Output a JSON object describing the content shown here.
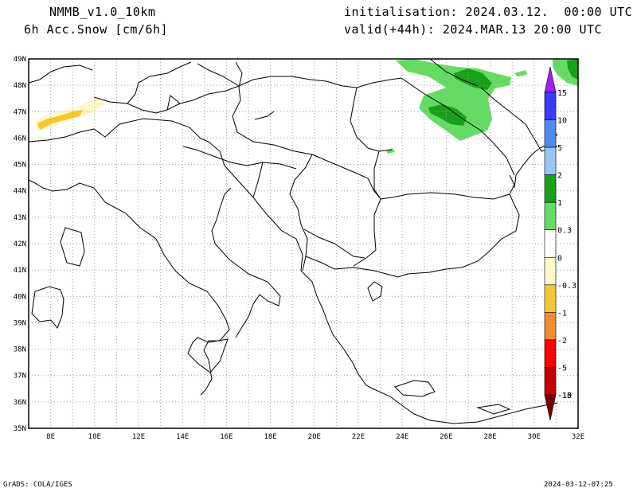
{
  "header": {
    "model": "NMMB_v1.0_10km",
    "variable": "6h Acc.Snow [cm/6h]",
    "init": "initialisation: 2024.03.12.  00:00 UTC",
    "valid": "valid(+44h): 2024.MAR.13 20:00 UTC"
  },
  "axes": {
    "lon_ticks": [
      "8E",
      "10E",
      "12E",
      "14E",
      "16E",
      "18E",
      "20E",
      "22E",
      "24E",
      "26E",
      "28E",
      "30E",
      "32E"
    ],
    "lat_ticks": [
      "49N",
      "48N",
      "47N",
      "46N",
      "45N",
      "44N",
      "43N",
      "42N",
      "41N",
      "40N",
      "39N",
      "38N",
      "37N",
      "36N",
      "35N"
    ],
    "lon_range": [
      7,
      32
    ],
    "lat_range": [
      35,
      49
    ]
  },
  "colorbar": {
    "levels": [
      "15",
      "10",
      "5",
      "2",
      "1",
      "0.3",
      "0",
      "-0.3",
      "-1",
      "-2",
      "-5",
      "-10",
      "-15"
    ],
    "colors": [
      "#a020f0",
      "#3c3cff",
      "#4b8cf0",
      "#96c8f8",
      "#18a018",
      "#64dc64",
      "#ffffff",
      "#fff8c8",
      "#f5c832",
      "#f08c32",
      "#ff0000",
      "#c80000",
      "#780000"
    ]
  },
  "footer": {
    "left": "GrADS: COLA/IGES",
    "right": "2024-03-12-07:25"
  }
}
